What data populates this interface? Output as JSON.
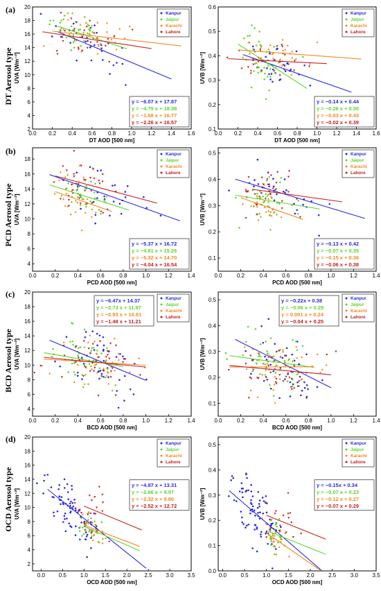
{
  "colors": {
    "Kanpur": "#2a2ae0",
    "Jaipur": "#5ad62a",
    "Karachi": "#f08a1e",
    "Lahore": "#c81e1e"
  },
  "rows": [
    {
      "label": "(a)",
      "aerosol_title": "DT Aerosol type"
    },
    {
      "label": "(b)",
      "aerosol_title": "PCD Aerosol type"
    },
    {
      "label": "(c)",
      "aerosol_title": "BCD Aerosol type"
    },
    {
      "label": "(d)",
      "aerosol_title": "OCD Aerosol type"
    }
  ],
  "chart_data": [
    {
      "type": "scatter",
      "ylabel": "UVA [Wm⁻²]",
      "xlabel": "DT AOD [500 nm]",
      "xlim": [
        0.0,
        1.6
      ],
      "ylim": [
        2,
        20
      ],
      "xticks": [
        "0.0",
        "0.2",
        "0.4",
        "0.6",
        "0.8",
        "1.0",
        "1.2",
        "1.4",
        "1.6"
      ],
      "yticks": [
        "2",
        "4",
        "6",
        "8",
        "10",
        "12",
        "14",
        "16",
        "18",
        "20"
      ],
      "legend": [
        "Kanpur",
        "Jaipur",
        "Karachi",
        "Lahore"
      ],
      "legend_position": "top-right",
      "equation_position": "bottom-right",
      "series": [
        {
          "name": "Kanpur",
          "slope": -6.07,
          "intercept": 17.87,
          "fit_x": [
            0.25,
            1.4
          ],
          "equation": "y = −6.07 x + 17.87",
          "x_center": 0.6,
          "y_center": 14.5,
          "x_spread": 0.28,
          "y_spread": 2.2,
          "count": 30
        },
        {
          "name": "Jaipur",
          "slope": -4.79,
          "intercept": 18.38,
          "fit_x": [
            0.25,
            0.95
          ],
          "equation": "y = −4.79 x + 18.38",
          "x_center": 0.45,
          "y_center": 16.0,
          "x_spread": 0.15,
          "y_spread": 2.0,
          "count": 40
        },
        {
          "name": "Karachi",
          "slope": -1.68,
          "intercept": 16.77,
          "fit_x": [
            0.2,
            1.5
          ],
          "equation": "y = −1.68 x + 16.77",
          "x_center": 0.55,
          "y_center": 15.5,
          "x_spread": 0.25,
          "y_spread": 1.8,
          "count": 30
        },
        {
          "name": "Lahore",
          "slope": -2.26,
          "intercept": 16.57,
          "fit_x": [
            0.1,
            1.2
          ],
          "equation": "y = −2.26 x + 16.57",
          "x_center": 0.5,
          "y_center": 15.0,
          "x_spread": 0.22,
          "y_spread": 2.0,
          "count": 30
        }
      ]
    },
    {
      "type": "scatter",
      "ylabel": "UVB [Wm⁻²]",
      "xlabel": "DT AOD [500 nm]",
      "xlim": [
        0.0,
        1.6
      ],
      "ylim": [
        0.1,
        0.6
      ],
      "xticks": [
        "0.0",
        "0.2",
        "0.4",
        "0.6",
        "0.8",
        "1.0",
        "1.2",
        "1.4",
        "1.6"
      ],
      "yticks": [
        "0.1",
        "0.2",
        "0.3",
        "0.4",
        "0.5",
        "0.6"
      ],
      "legend": [
        "Kanpur",
        "Jaipur",
        "Karachi",
        "Lahore"
      ],
      "legend_position": "top-right",
      "equation_position": "bottom-right",
      "series": [
        {
          "name": "Kanpur",
          "slope": -0.14,
          "intercept": 0.44,
          "fit_x": [
            0.25,
            1.35
          ],
          "equation": "y = −0.14 x + 0.44",
          "x_center": 0.6,
          "y_center": 0.37,
          "x_spread": 0.25,
          "y_spread": 0.06,
          "count": 30
        },
        {
          "name": "Jaipur",
          "slope": -0.26,
          "intercept": 0.5,
          "fit_x": [
            0.2,
            0.9
          ],
          "equation": "y = −0.26 x + 0.50",
          "x_center": 0.45,
          "y_center": 0.4,
          "x_spread": 0.15,
          "y_spread": 0.1,
          "count": 40
        },
        {
          "name": "Karachi",
          "slope": -0.03,
          "intercept": 0.43,
          "fit_x": [
            0.2,
            1.45
          ],
          "equation": "y = −0.03 x + 0.43",
          "x_center": 0.55,
          "y_center": 0.41,
          "x_spread": 0.25,
          "y_spread": 0.05,
          "count": 30
        },
        {
          "name": "Lahore",
          "slope": -0.02,
          "intercept": 0.39,
          "fit_x": [
            0.1,
            1.1
          ],
          "equation": "y = −0.02 x + 0.39",
          "x_center": 0.5,
          "y_center": 0.38,
          "x_spread": 0.22,
          "y_spread": 0.06,
          "count": 30
        }
      ]
    },
    {
      "type": "scatter",
      "ylabel": "UVA [Wm⁻²]",
      "xlabel": "PCD AOD [500 nm]",
      "xlim": [
        0.0,
        1.4
      ],
      "ylim": [
        3,
        19.5
      ],
      "xticks": [
        "0.0",
        "0.2",
        "0.4",
        "0.6",
        "0.8",
        "1.0",
        "1.2",
        "1.4"
      ],
      "yticks": [
        "4",
        "6",
        "8",
        "10",
        "12",
        "14",
        "16",
        "18"
      ],
      "legend": [
        "Kanpur",
        "Jaipur",
        "Karachi",
        "Lahore"
      ],
      "legend_position": "top-right",
      "equation_position": "bottom-right",
      "series": [
        {
          "name": "Kanpur",
          "slope": -5.37,
          "intercept": 16.72,
          "fit_x": [
            0.15,
            1.3
          ],
          "equation": "y = −5.37 x + 16.72",
          "x_center": 0.6,
          "y_center": 13.0,
          "x_spread": 0.25,
          "y_spread": 2.5,
          "count": 30
        },
        {
          "name": "Jaipur",
          "slope": -4.81,
          "intercept": 15.26,
          "fit_x": [
            0.15,
            0.85
          ],
          "equation": "y = −4.81 x + 15.26",
          "x_center": 0.45,
          "y_center": 13.0,
          "x_spread": 0.15,
          "y_spread": 2.2,
          "count": 35
        },
        {
          "name": "Karachi",
          "slope": -5.32,
          "intercept": 14.7,
          "fit_x": [
            0.2,
            0.7
          ],
          "equation": "y = −5.32 x + 14.70",
          "x_center": 0.4,
          "y_center": 12.5,
          "x_spread": 0.12,
          "y_spread": 2.5,
          "count": 25
        },
        {
          "name": "Lahore",
          "slope": -4.04,
          "intercept": 16.54,
          "fit_x": [
            0.2,
            1.1
          ],
          "equation": "y = −4.04 x + 16.54",
          "x_center": 0.45,
          "y_center": 14.5,
          "x_spread": 0.2,
          "y_spread": 2.5,
          "count": 35
        }
      ]
    },
    {
      "type": "scatter",
      "ylabel": "UVB [Wm⁻²]",
      "xlabel": "PCD AOD [500 nm]",
      "xlim": [
        0.0,
        1.4
      ],
      "ylim": [
        0.05,
        0.52
      ],
      "xticks": [
        "0.0",
        "0.2",
        "0.4",
        "0.6",
        "0.8",
        "1.0",
        "1.2",
        "1.4"
      ],
      "yticks": [
        "0.1",
        "0.2",
        "0.3",
        "0.4",
        "0.5"
      ],
      "legend": [
        "Kanpur",
        "Jaipur",
        "Karachi",
        "Lahore"
      ],
      "legend_position": "top-right",
      "equation_position": "bottom-right",
      "series": [
        {
          "name": "Kanpur",
          "slope": -0.13,
          "intercept": 0.42,
          "fit_x": [
            0.15,
            1.3
          ],
          "equation": "y = −0.13 x + 0.42",
          "x_center": 0.6,
          "y_center": 0.34,
          "x_spread": 0.25,
          "y_spread": 0.06,
          "count": 30
        },
        {
          "name": "Jaipur",
          "slope": -0.07,
          "intercept": 0.35,
          "fit_x": [
            0.15,
            0.9
          ],
          "equation": "y = −0.07 x + 0.35",
          "x_center": 0.45,
          "y_center": 0.32,
          "x_spread": 0.15,
          "y_spread": 0.07,
          "count": 35
        },
        {
          "name": "Karachi",
          "slope": -0.15,
          "intercept": 0.36,
          "fit_x": [
            0.2,
            0.75
          ],
          "equation": "y = −0.15 x + 0.36",
          "x_center": 0.4,
          "y_center": 0.3,
          "x_spread": 0.12,
          "y_spread": 0.06,
          "count": 25
        },
        {
          "name": "Lahore",
          "slope": -0.06,
          "intercept": 0.38,
          "fit_x": [
            0.3,
            1.1
          ],
          "equation": "y = −0.06 x + 0.38",
          "x_center": 0.45,
          "y_center": 0.36,
          "x_spread": 0.2,
          "y_spread": 0.06,
          "count": 35
        }
      ]
    },
    {
      "type": "scatter",
      "ylabel": "UVA [Wm⁻²]",
      "xlabel": "BCD AOD [500 nm]",
      "xlim": [
        0.0,
        1.4
      ],
      "ylim": [
        3,
        20
      ],
      "xticks": [
        "0.0",
        "0.2",
        "0.4",
        "0.6",
        "0.8",
        "1.0",
        "1.2",
        "1.4"
      ],
      "yticks": [
        "4",
        "6",
        "8",
        "10",
        "12",
        "14",
        "16",
        "18",
        "20"
      ],
      "legend": [
        "Kanpur",
        "Jaipur",
        "Karachi",
        "Lahore"
      ],
      "legend_position": "top-right",
      "equation_position": "top-right",
      "series": [
        {
          "name": "Kanpur",
          "slope": -6.47,
          "intercept": 14.37,
          "fit_x": [
            0.15,
            1.0
          ],
          "equation": "y = −6.47x + 14.37",
          "x_center": 0.6,
          "y_center": 10.0,
          "x_spread": 0.22,
          "y_spread": 3.0,
          "count": 50
        },
        {
          "name": "Jaipur",
          "slope": -2.73,
          "intercept": 11.97,
          "fit_x": [
            0.1,
            0.8
          ],
          "equation": "y = −2.73 x + 11.97",
          "x_center": 0.45,
          "y_center": 10.5,
          "x_spread": 0.2,
          "y_spread": 2.5,
          "count": 45
        },
        {
          "name": "Karachi",
          "slope": -0.93,
          "intercept": 10.91,
          "fit_x": [
            0.1,
            1.0
          ],
          "equation": "y = −0.93 x + 10.91",
          "x_center": 0.55,
          "y_center": 10.0,
          "x_spread": 0.22,
          "y_spread": 2.5,
          "count": 40
        },
        {
          "name": "Lahore",
          "slope": -1.48,
          "intercept": 11.21,
          "fit_x": [
            0.1,
            1.0
          ],
          "equation": "y = −1.48 x + 11.21",
          "x_center": 0.55,
          "y_center": 10.3,
          "x_spread": 0.22,
          "y_spread": 2.5,
          "count": 40
        }
      ]
    },
    {
      "type": "scatter",
      "ylabel": "UVB [Wm⁻²]",
      "xlabel": "BCD AOD [500 nm]",
      "xlim": [
        0.0,
        1.4
      ],
      "ylim": [
        0.05,
        0.53
      ],
      "xticks": [
        "0.0",
        "0.2",
        "0.4",
        "0.6",
        "0.8",
        "1.0",
        "1.2",
        "1.4"
      ],
      "yticks": [
        "0.1",
        "0.2",
        "0.3",
        "0.4",
        "0.5"
      ],
      "legend": [
        "Kanpur",
        "Jaipur",
        "Karachi",
        "Lahore"
      ],
      "legend_position": "top-right",
      "equation_position": "top-right",
      "series": [
        {
          "name": "Kanpur",
          "slope": -0.22,
          "intercept": 0.38,
          "fit_x": [
            0.15,
            1.0
          ],
          "equation": "y = −0.22x + 0.38",
          "x_center": 0.6,
          "y_center": 0.24,
          "x_spread": 0.22,
          "y_spread": 0.09,
          "count": 50
        },
        {
          "name": "Jaipur",
          "slope": -0.06,
          "intercept": 0.29,
          "fit_x": [
            0.1,
            0.85
          ],
          "equation": "y = −0.06 x + 0.29",
          "x_center": 0.45,
          "y_center": 0.26,
          "x_spread": 0.2,
          "y_spread": 0.08,
          "count": 45
        },
        {
          "name": "Karachi",
          "slope": 0.001,
          "intercept": 0.24,
          "fit_x": [
            0.1,
            0.85
          ],
          "equation": "y = 0.001 x + 0.24",
          "x_center": 0.55,
          "y_center": 0.24,
          "x_spread": 0.22,
          "y_spread": 0.07,
          "count": 40
        },
        {
          "name": "Lahore",
          "slope": -0.04,
          "intercept": 0.25,
          "fit_x": [
            0.1,
            1.0
          ],
          "equation": "y = −0.04 x + 0.25",
          "x_center": 0.55,
          "y_center": 0.23,
          "x_spread": 0.22,
          "y_spread": 0.07,
          "count": 40
        }
      ]
    },
    {
      "type": "scatter",
      "ylabel": "UVA [Wm⁻²]",
      "xlabel": "OCD AOD [500 nm]",
      "xlim": [
        -0.2,
        3.5
      ],
      "ylim": [
        1,
        20
      ],
      "xticks": [
        "0.0",
        "0.5",
        "1.0",
        "1.5",
        "2.0",
        "2.5",
        "3.0",
        "3.5"
      ],
      "yticks": [
        "2",
        "4",
        "6",
        "8",
        "10",
        "12",
        "14",
        "16",
        "18",
        "20"
      ],
      "legend": [
        "Kanpur",
        "Jaipur",
        "Karachi",
        "Lahore"
      ],
      "legend_position": "top-right",
      "equation_position": "middle-right",
      "series": [
        {
          "name": "Kanpur",
          "slope": -4.87,
          "intercept": 13.31,
          "fit_x": [
            0.15,
            2.45
          ],
          "equation": "y = −4.87 x + 13.31",
          "x_center": 0.7,
          "y_center": 9.5,
          "x_spread": 0.35,
          "y_spread": 3.0,
          "count": 80
        },
        {
          "name": "Jaipur",
          "slope": -2.66,
          "intercept": 9.97,
          "fit_x": [
            1.0,
            2.3
          ],
          "equation": "y = −2.66 x + 9.97",
          "x_center": 1.2,
          "y_center": 7.0,
          "x_spread": 0.18,
          "y_spread": 1.5,
          "count": 25
        },
        {
          "name": "Karachi",
          "slope": -2.32,
          "intercept": 9.8,
          "fit_x": [
            1.0,
            2.3
          ],
          "equation": "y = −2.32 x + 9.80",
          "x_center": 1.2,
          "y_center": 7.0,
          "x_spread": 0.18,
          "y_spread": 1.5,
          "count": 20
        },
        {
          "name": "Lahore",
          "slope": -2.52,
          "intercept": 12.72,
          "fit_x": [
            1.0,
            2.35
          ],
          "equation": "y = −2.52 x + 12.72",
          "x_center": 1.2,
          "y_center": 9.5,
          "x_spread": 0.25,
          "y_spread": 3.0,
          "count": 20
        }
      ]
    },
    {
      "type": "scatter",
      "ylabel": "UVB [Wm⁻²]",
      "xlabel": "OCD AOD [500 nm]",
      "xlim": [
        -0.1,
        3.5
      ],
      "ylim": [
        0.0,
        0.53
      ],
      "xticks": [
        "0.0",
        "0.5",
        "1.0",
        "1.5",
        "2.0",
        "2.5",
        "3.0",
        "3.5"
      ],
      "yticks": [
        "0.0",
        "0.1",
        "0.2",
        "0.3",
        "0.4",
        "0.5"
      ],
      "legend": [
        "Kanpur",
        "Jaipur",
        "Karachi",
        "Lahore"
      ],
      "legend_position": "top-right",
      "equation_position": "middle-right",
      "series": [
        {
          "name": "Kanpur",
          "slope": -0.15,
          "intercept": 0.34,
          "fit_x": [
            0.15,
            2.3
          ],
          "equation": "y = −0.15x + 0.34",
          "x_center": 0.7,
          "y_center": 0.22,
          "x_spread": 0.35,
          "y_spread": 0.1,
          "count": 80
        },
        {
          "name": "Jaipur",
          "slope": -0.07,
          "intercept": 0.23,
          "fit_x": [
            1.0,
            2.35
          ],
          "equation": "y = −0.07 x + 0.23",
          "x_center": 1.2,
          "y_center": 0.14,
          "x_spread": 0.15,
          "y_spread": 0.04,
          "count": 25
        },
        {
          "name": "Karachi",
          "slope": -0.12,
          "intercept": 0.27,
          "fit_x": [
            1.0,
            2.35
          ],
          "equation": "y = −0.12 x + 0.27",
          "x_center": 1.2,
          "y_center": 0.13,
          "x_spread": 0.15,
          "y_spread": 0.04,
          "count": 20
        },
        {
          "name": "Lahore",
          "slope": -0.07,
          "intercept": 0.29,
          "fit_x": [
            1.0,
            2.35
          ],
          "equation": "y = −0.07 x + 0.29",
          "x_center": 1.3,
          "y_center": 0.2,
          "x_spread": 0.25,
          "y_spread": 0.1,
          "count": 20
        }
      ]
    }
  ]
}
